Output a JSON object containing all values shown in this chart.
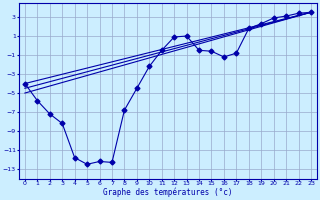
{
  "title": "Graphe des températures (°c)",
  "background_color": "#cceeff",
  "grid_color": "#99aacc",
  "line_color": "#0000aa",
  "xlim": [
    -0.5,
    23.5
  ],
  "ylim": [
    -14,
    4.5
  ],
  "yticks": [
    3,
    1,
    -1,
    -3,
    -5,
    -7,
    -9,
    -11,
    -13
  ],
  "xticks": [
    0,
    1,
    2,
    3,
    4,
    5,
    6,
    7,
    8,
    9,
    10,
    11,
    12,
    13,
    14,
    15,
    16,
    17,
    18,
    19,
    20,
    21,
    22,
    23
  ],
  "series_main": {
    "x": [
      0,
      1,
      2,
      3,
      4,
      5,
      6,
      7,
      8,
      9,
      10,
      11,
      12,
      13,
      14,
      15,
      16,
      17,
      18,
      19,
      20,
      21,
      22,
      23
    ],
    "y": [
      -4.0,
      -5.8,
      -7.2,
      -8.2,
      -11.8,
      -12.5,
      -12.2,
      -12.3,
      -6.8,
      -4.5,
      -2.2,
      -0.5,
      0.9,
      1.0,
      -0.5,
      -0.6,
      -1.2,
      -0.8,
      1.8,
      2.3,
      2.9,
      3.1,
      3.4,
      3.5
    ],
    "marker": "D",
    "markersize": 2.5
  },
  "series_linear": [
    {
      "x": [
        0,
        23
      ],
      "y": [
        -4.0,
        3.5
      ]
    },
    {
      "x": [
        0,
        23
      ],
      "y": [
        -4.5,
        3.5
      ]
    },
    {
      "x": [
        0,
        23
      ],
      "y": [
        -5.0,
        3.5
      ]
    }
  ]
}
